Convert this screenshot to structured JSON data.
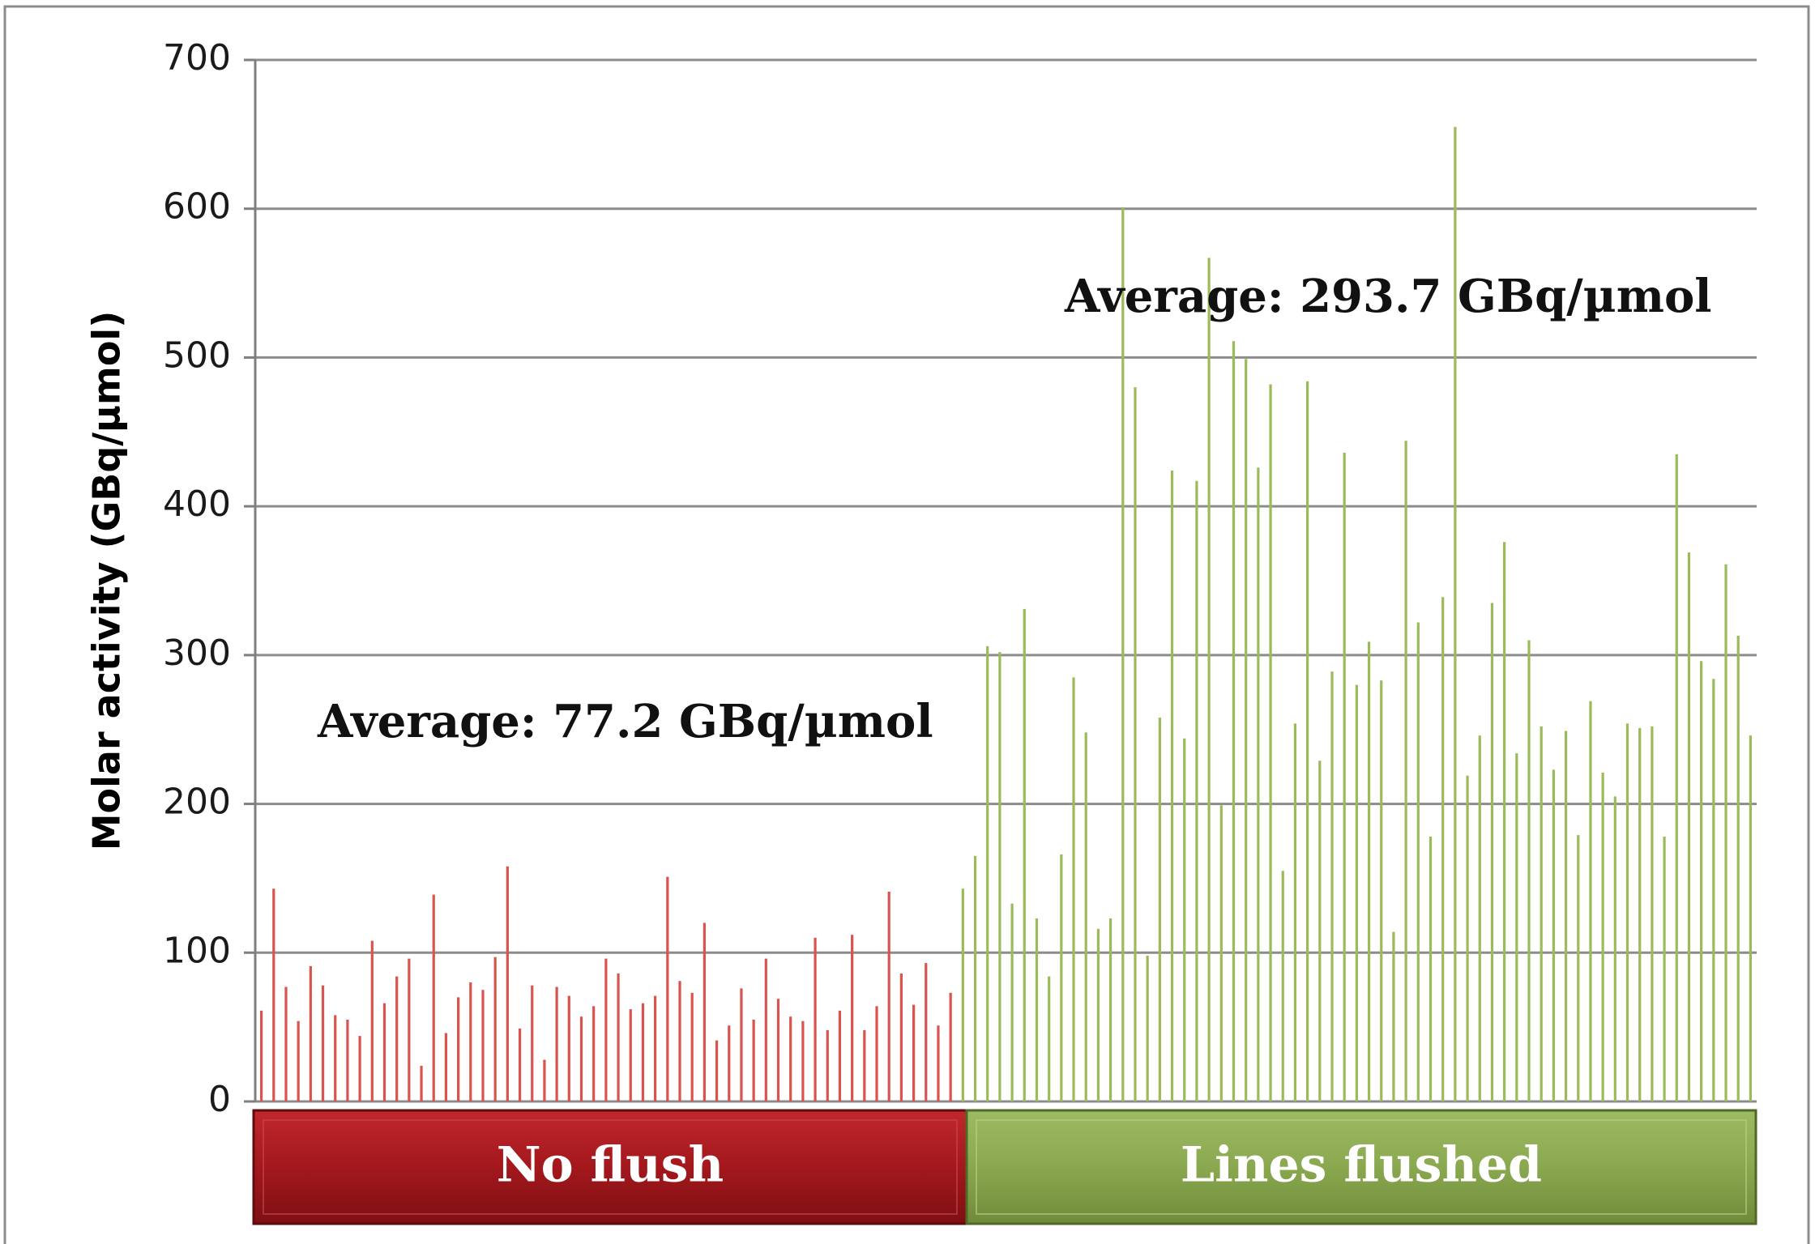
{
  "chart_data": {
    "type": "bar",
    "ylabel": "Molar activity (GBq/µmol)",
    "ylim": [
      0,
      700
    ],
    "yticks": [
      0,
      100,
      200,
      300,
      400,
      500,
      600,
      700
    ],
    "grid": true,
    "colors": {
      "no_flush": "#d9534f",
      "lines_flushed": "#9bbb59",
      "no_flush_box": "#a3181d",
      "lines_flushed_box": "#8aa84f"
    },
    "series": [
      {
        "name": "No flush",
        "annotation": "Average: 77.2 GBq/µmol",
        "values": [
          61,
          143,
          77,
          54,
          91,
          78,
          58,
          55,
          44,
          108,
          66,
          84,
          96,
          24,
          139,
          46,
          70,
          80,
          75,
          97,
          158,
          49,
          78,
          28,
          77,
          71,
          57,
          64,
          96,
          86,
          62,
          66,
          71,
          151,
          81,
          73,
          120,
          41,
          51,
          76,
          55,
          96,
          69,
          57,
          54,
          110,
          48,
          61,
          112,
          48,
          64,
          141,
          86,
          65,
          93,
          51,
          73
        ]
      },
      {
        "name": "Lines flushed",
        "annotation": "Average: 293.7 GBq/µmol",
        "values": [
          143,
          165,
          306,
          302,
          133,
          331,
          123,
          84,
          166,
          285,
          248,
          116,
          123,
          601,
          480,
          98,
          258,
          424,
          244,
          417,
          567,
          199,
          511,
          499,
          426,
          482,
          155,
          254,
          484,
          229,
          289,
          436,
          280,
          309,
          283,
          114,
          444,
          322,
          178,
          339,
          655,
          219,
          246,
          335,
          376,
          234,
          310,
          252,
          223,
          249,
          179,
          269,
          221,
          205,
          254,
          251,
          252,
          178,
          435,
          369,
          296,
          284,
          361,
          313,
          246
        ]
      }
    ]
  }
}
